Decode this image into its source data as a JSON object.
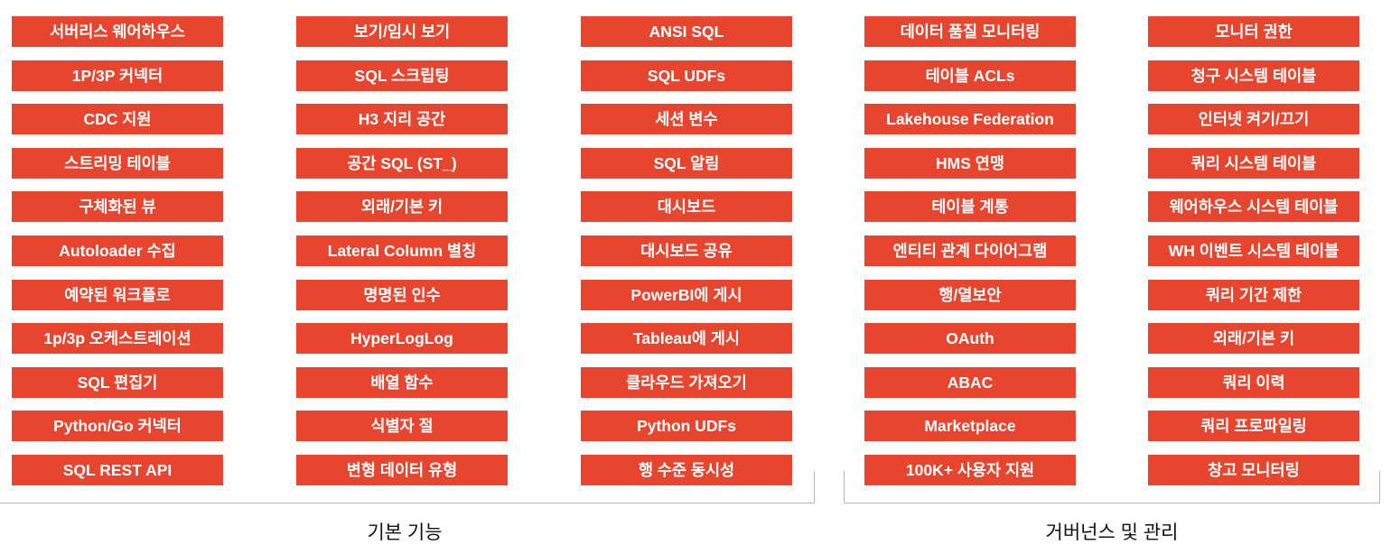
{
  "columns": [
    {
      "items": [
        "서버리스 웨어하우스",
        "1P/3P 커넥터",
        "CDC 지원",
        "스트리밍 테이블",
        "구체화된 뷰",
        "Autoloader 수집",
        "예약된 워크플로",
        "1p/3p 오케스트레이션",
        "SQL 편집기",
        "Python/Go 커넥터",
        "SQL REST API"
      ]
    },
    {
      "items": [
        "보기/임시 보기",
        "SQL 스크립팅",
        "H3 지리 공간",
        "공간 SQL (ST_)",
        "외래/기본 키",
        "Lateral Column 별칭",
        "명명된 인수",
        "HyperLogLog",
        "배열 함수",
        "식별자 절",
        "변형 데이터 유형"
      ]
    },
    {
      "items": [
        "ANSI SQL",
        "SQL UDFs",
        "세션 변수",
        "SQL 알림",
        "대시보드",
        "대시보드 공유",
        "PowerBI에 게시",
        "Tableau에 게시",
        "클라우드 가져오기",
        "Python UDFs",
        "행 수준 동시성"
      ]
    },
    {
      "items": [
        "데이터 품질 모니터링",
        "테이블 ACLs",
        "Lakehouse Federation",
        "HMS 연맹",
        "테이블 계통",
        "엔티티 관계 다이어그램",
        "행/열보안",
        "OAuth",
        "ABAC",
        "Marketplace",
        "100K+ 사용자 지원"
      ]
    },
    {
      "items": [
        "모니터 권한",
        "청구 시스템 테이블",
        "인터넷 켜기/끄기",
        "쿼리 시스템 테이블",
        "웨어하우스 시스템 테이블",
        "WH 이벤트 시스템 테이블",
        "쿼리 기간 제한",
        "외래/기본 키",
        "쿼리 이력",
        "쿼리 프로파일링",
        "창고 모니터링"
      ]
    }
  ],
  "groups": {
    "basic": {
      "label": "기본 기능"
    },
    "governance": {
      "label": "거버넌스 및 관리"
    }
  },
  "colors": {
    "tile_background": "#e8452f",
    "tile_text": "#ffffff",
    "bracket": "#b6b6b6",
    "label_text": "#111111"
  }
}
